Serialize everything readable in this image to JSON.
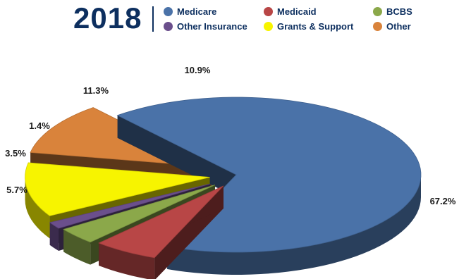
{
  "header": {
    "year": "2018"
  },
  "chart_data": {
    "type": "pie",
    "title": "2018",
    "legend_placement": "top",
    "categories": [
      "Medicare",
      "Medicaid",
      "BCBS",
      "Other Insurance",
      "Grants & Support",
      "Other"
    ],
    "values": [
      67.2,
      5.7,
      3.5,
      1.4,
      11.3,
      10.9
    ],
    "value_labels": [
      "67.2%",
      "5.7%",
      "3.5%",
      "1.4%",
      "11.3%",
      "10.9%"
    ],
    "colors": {
      "Medicare": "#4a72a8",
      "Medicaid": "#b84646",
      "BCBS": "#8ba84a",
      "Other Insurance": "#6b4f8c",
      "Grants & Support": "#f7f400",
      "Other": "#d9833b"
    }
  },
  "legend": [
    {
      "label": "Medicare",
      "color": "#4a72a8"
    },
    {
      "label": "Medicaid",
      "color": "#b84646"
    },
    {
      "label": "BCBS",
      "color": "#8ba84a"
    },
    {
      "label": "Other Insurance",
      "color": "#6b4f8c"
    },
    {
      "label": "Grants & Support",
      "color": "#f7f400"
    },
    {
      "label": "Other",
      "color": "#d9833b"
    }
  ]
}
